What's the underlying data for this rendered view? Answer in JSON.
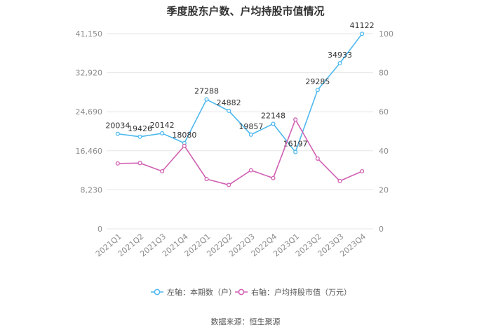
{
  "chart_data": {
    "type": "line",
    "title": "季度股东户数、户均持股市值情况",
    "categories": [
      "2021Q1",
      "2021Q2",
      "2021Q3",
      "2021Q4",
      "2022Q1",
      "2022Q2",
      "2022Q3",
      "2022Q4",
      "2023Q1",
      "2023Q2",
      "2023Q3",
      "2023Q4"
    ],
    "left_axis": {
      "min": 0,
      "max": 41150,
      "ticks": [
        "0",
        "8,230",
        "16,460",
        "24,690",
        "32,920",
        "41,150"
      ]
    },
    "right_axis": {
      "min": 0,
      "max": 100,
      "ticks": [
        "0",
        "20",
        "40",
        "60",
        "80",
        "100"
      ]
    },
    "series": [
      {
        "name": "左轴：本期数（户）",
        "axis": "left",
        "color": "#4db8ef",
        "values": [
          20034,
          19426,
          20142,
          18080,
          27288,
          24882,
          19857,
          22148,
          16197,
          29285,
          34933,
          41122
        ],
        "labels": [
          "20034",
          "19426",
          "20142",
          "18080",
          "27288",
          "24882",
          "19857",
          "22148",
          "16197",
          "29285",
          "34933",
          "41122"
        ]
      },
      {
        "name": "右轴：户均持股市值（万元）",
        "axis": "right",
        "color": "#d05fb2",
        "values": [
          33.5,
          33.7,
          29.5,
          42.5,
          25.5,
          22.5,
          30.0,
          26.0,
          56.0,
          36.0,
          24.5,
          29.5
        ]
      }
    ],
    "legend_position": "bottom",
    "grid": true
  },
  "source_text": "数据来源：恒生聚源"
}
